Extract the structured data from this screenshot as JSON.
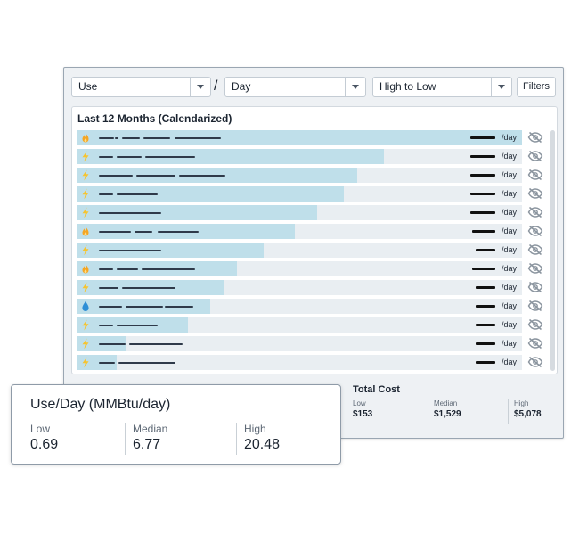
{
  "toolbar": {
    "metric_select": "Use",
    "separator": "/",
    "period_select": "Day",
    "sort_select": "High to Low",
    "filters_label": "Filters"
  },
  "panel": {
    "title": "Last 12 Months (Calendarized)",
    "unit_label": "/day",
    "rows": [
      {
        "icon": "flame-icon",
        "level": 1.0
      },
      {
        "icon": "lightning-icon",
        "level": 0.69
      },
      {
        "icon": "lightning-icon",
        "level": 0.63
      },
      {
        "icon": "lightning-icon",
        "level": 0.6
      },
      {
        "icon": "lightning-icon",
        "level": 0.54
      },
      {
        "icon": "flame-icon",
        "level": 0.49
      },
      {
        "icon": "lightning-icon",
        "level": 0.42
      },
      {
        "icon": "flame-icon",
        "level": 0.36
      },
      {
        "icon": "lightning-icon",
        "level": 0.33
      },
      {
        "icon": "water-drop-icon",
        "level": 0.3
      },
      {
        "icon": "lightning-icon",
        "level": 0.25
      },
      {
        "icon": "lightning-icon",
        "level": 0.11
      },
      {
        "icon": "lightning-icon",
        "level": 0.09
      }
    ]
  },
  "total_cost": {
    "title": "Total Cost",
    "low_label": "Low",
    "low_value": "$153",
    "median_label": "Median",
    "median_value": "$1,529",
    "high_label": "High",
    "high_value": "$5,078"
  },
  "popup": {
    "title": "Use/Day (MMBtu/day)",
    "low_label": "Low",
    "low_value": "0.69",
    "median_label": "Median",
    "median_value": "6.77",
    "high_label": "High",
    "high_value": "20.48"
  },
  "colors": {
    "bar_fill": "#bfdfea",
    "bar_track": "#e9eef2",
    "flame": "#f5a623",
    "lightning": "#f7c42e",
    "water": "#2f8fd6"
  }
}
